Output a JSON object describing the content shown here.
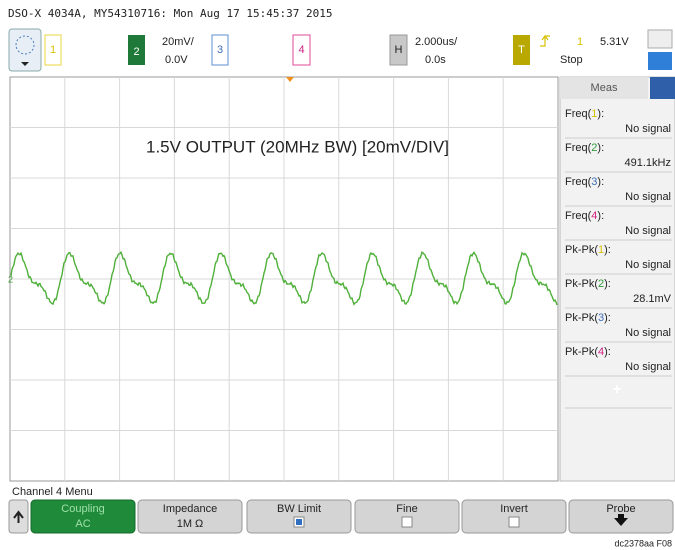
{
  "header": {
    "title": "DSO-X 4034A, MY54310716: Mon Aug 17 15:45:37 2015"
  },
  "toolbar": {
    "ch1": "1",
    "ch2": {
      "label": "2",
      "scale": "20mV/",
      "offset": "0.0V"
    },
    "ch3": "3",
    "ch4": "4",
    "horizontal": {
      "label": "H",
      "scale": "2.000us/",
      "delay": "0.0s"
    },
    "trigger": {
      "label": "T",
      "source": "1",
      "level": "5.31V",
      "state": "Stop"
    }
  },
  "screen": {
    "annotation": "1.5V OUTPUT (20MHz BW) [20mV/DIV]",
    "ground_marker": "2"
  },
  "measurements": {
    "title": "Meas",
    "add": "+",
    "items": [
      {
        "label": [
          "Freq(",
          "1",
          "):"
        ],
        "value": "No signal"
      },
      {
        "label": [
          "Freq(",
          "2",
          "):"
        ],
        "value": "491.1kHz"
      },
      {
        "label": [
          "Freq(",
          "3",
          "):"
        ],
        "value": "No signal"
      },
      {
        "label": [
          "Freq(",
          "4",
          "):"
        ],
        "value": "No signal"
      },
      {
        "label": [
          "Pk-Pk(",
          "1",
          "):"
        ],
        "value": "No signal"
      },
      {
        "label": [
          "Pk-Pk(",
          "2",
          "):"
        ],
        "value": "28.1mV"
      },
      {
        "label": [
          "Pk-Pk(",
          "3",
          "):"
        ],
        "value": "No signal"
      },
      {
        "label": [
          "Pk-Pk(",
          "4",
          "):"
        ],
        "value": "No signal"
      }
    ]
  },
  "menu": {
    "title": "Channel 4 Menu",
    "buttons": [
      {
        "label": "Coupling",
        "value": "AC"
      },
      {
        "label": "Impedance",
        "value": "1M Ω"
      },
      {
        "label": "BW Limit"
      },
      {
        "label": "Fine"
      },
      {
        "label": "Invert"
      },
      {
        "label": "Probe"
      }
    ]
  },
  "footer": {
    "code": "dc2378aa F08"
  }
}
